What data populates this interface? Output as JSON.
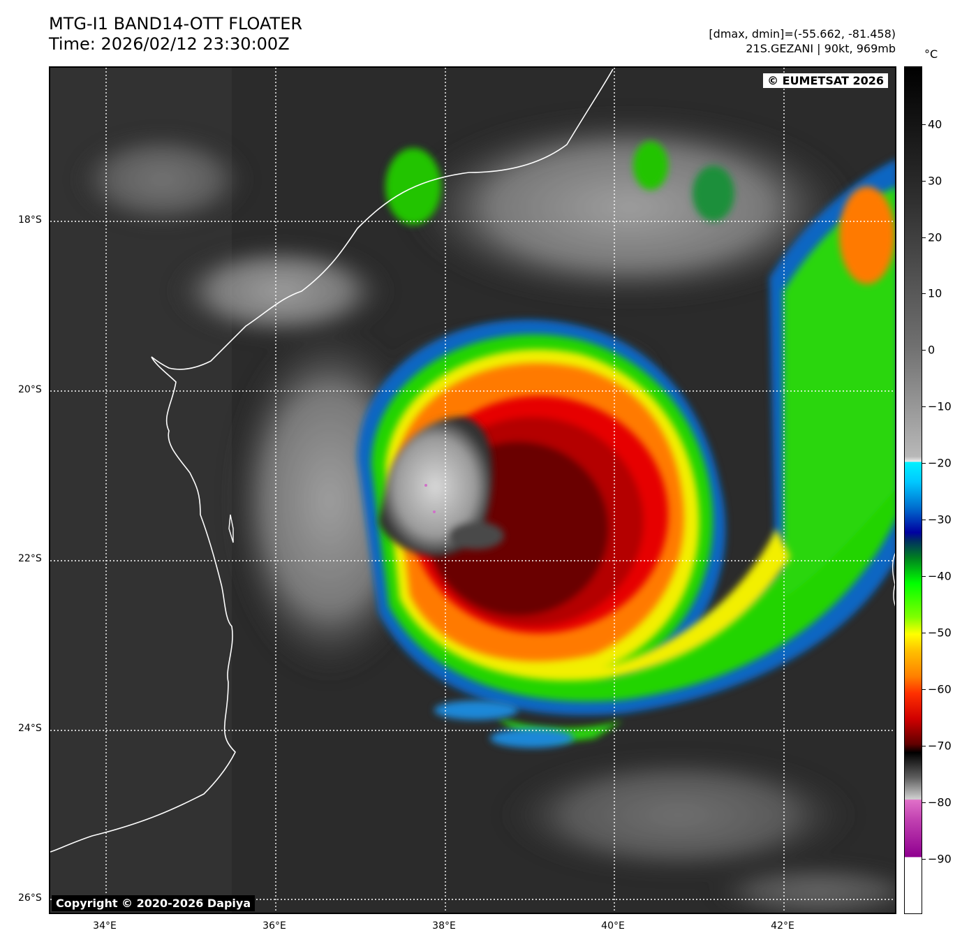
{
  "header": {
    "title_line1": "MTG-I1 BAND14-OTT FLOATER",
    "title_line2": "Time: 2026/02/12 23:30:00Z",
    "info_line1": "[dmax, dmin]=(-55.662, -81.458)",
    "info_line2": "21S.GEZANI | 90kt, 969mb"
  },
  "map": {
    "credit": "© EUMETSAT 2026",
    "copyright": "Copyright © 2020-2026 Dapiya",
    "lat_labels": [
      "18°S",
      "20°S",
      "22°S",
      "24°S",
      "26°S"
    ],
    "lon_labels": [
      "34°E",
      "36°E",
      "38°E",
      "40°E",
      "42°E"
    ]
  },
  "colorbar": {
    "unit": "°C",
    "tick_labels": [
      "40",
      "30",
      "20",
      "10",
      "0",
      "−10",
      "−20",
      "−30",
      "−40",
      "−50",
      "−60",
      "−70",
      "−80",
      "−90"
    ],
    "colors": {
      "warm_gray_top": "#000000",
      "gray_mid": "#808080",
      "cyan": "#00f0ff",
      "blue": "#0000a0",
      "green": "#00e000",
      "yellow": "#ffff00",
      "orange": "#ff8000",
      "red": "#e00000",
      "dark_red": "#600000",
      "black": "#000000",
      "magenta": "#a000a0",
      "white": "#ffffff"
    }
  }
}
